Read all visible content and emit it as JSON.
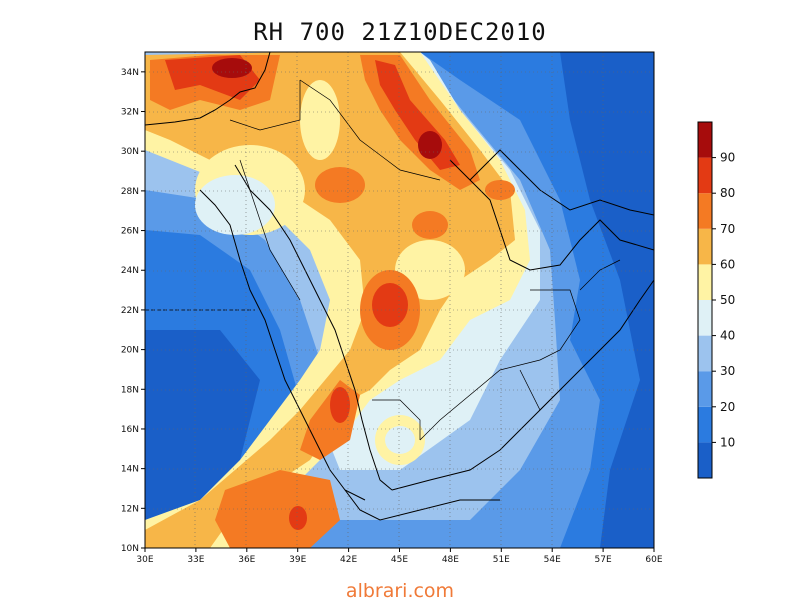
{
  "title": "RH 700 21Z10DEC2010",
  "watermark": "albrari.com",
  "axes": {
    "lon_labels": [
      "30E",
      "33E",
      "36E",
      "39E",
      "42E",
      "45E",
      "48E",
      "51E",
      "54E",
      "57E",
      "60E"
    ],
    "lat_labels": [
      "10N",
      "12N",
      "14N",
      "16N",
      "18N",
      "20N",
      "22N",
      "24N",
      "26N",
      "28N",
      "30N",
      "32N",
      "34N"
    ]
  },
  "colorbar": {
    "labels": [
      "10",
      "20",
      "30",
      "40",
      "50",
      "60",
      "70",
      "80",
      "90"
    ],
    "colors": [
      "#1a5fc8",
      "#2b7be0",
      "#5a9ae8",
      "#9cc3ee",
      "#dff1f6",
      "#fff3a4",
      "#f7b648",
      "#f47a23",
      "#e33a14",
      "#a60c0c"
    ]
  },
  "chart_data": {
    "type": "heatmap",
    "title": "RH 700 21Z10DEC2010",
    "variable": "RH",
    "level": "700",
    "x_range": [
      30,
      60
    ],
    "y_range": [
      10,
      35
    ],
    "levels": [
      10,
      20,
      30,
      40,
      50,
      60,
      70,
      80,
      90
    ]
  }
}
